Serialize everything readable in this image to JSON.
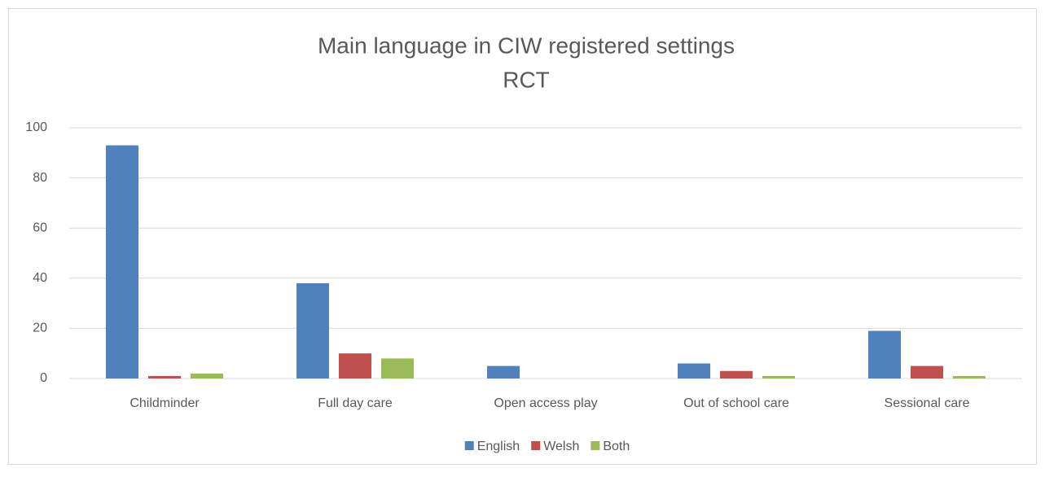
{
  "chart_data": {
    "type": "bar",
    "title": "Main language in CIW registered settings",
    "subtitle": "RCT",
    "categories": [
      "Childminder",
      "Full day care",
      "Open access play",
      "Out of school care",
      "Sessional care"
    ],
    "series": [
      {
        "name": "English",
        "color": "#4f81bd",
        "values": [
          93,
          38,
          5,
          6,
          19
        ]
      },
      {
        "name": "Welsh",
        "color": "#c0504d",
        "values": [
          1,
          10,
          0,
          3,
          5
        ]
      },
      {
        "name": "Both",
        "color": "#9bbb59",
        "values": [
          2,
          8,
          0,
          1,
          1
        ]
      }
    ],
    "ylim": [
      0,
      100
    ],
    "yticks": [
      0,
      20,
      40,
      60,
      80,
      100
    ],
    "grid": true,
    "legend": "bottom"
  }
}
